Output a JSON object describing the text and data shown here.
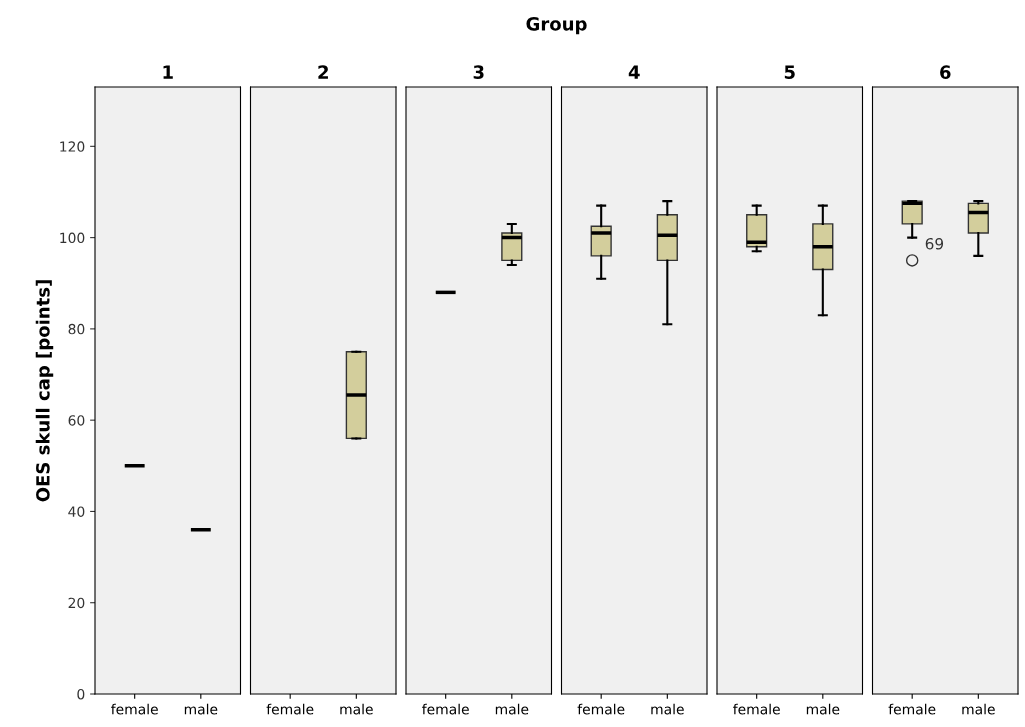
{
  "chart_data": [
    {
      "type": "box",
      "title": "1",
      "ylabel": "OES skull cap [points]",
      "annotations": [
        "Group"
      ],
      "categories": [
        "female",
        "male"
      ],
      "color": "#d3ce9c",
      "ylim": [
        0,
        133
      ],
      "yticks": [
        0,
        20,
        40,
        60,
        80,
        100,
        120
      ],
      "grid": false,
      "boxes": [
        {
          "low": 50,
          "q1": 50,
          "median": 50,
          "q3": 50,
          "high": 50
        },
        {
          "low": 36,
          "q1": 36,
          "median": 36,
          "q3": 36,
          "high": 36
        }
      ]
    },
    {
      "type": "box",
      "title": "2",
      "categories": [
        "female",
        "male"
      ],
      "color": "#d3ce9c",
      "ylim": [
        0,
        133
      ],
      "tick_labels": "x",
      "grid": false,
      "boxes": [
        null,
        {
          "low": 56,
          "q1": 56,
          "median": 65.5,
          "q3": 75,
          "high": 75
        }
      ]
    },
    {
      "type": "box",
      "title": "3",
      "categories": [
        "female",
        "male"
      ],
      "color": "#d3ce9c",
      "ylim": [
        0,
        133
      ],
      "tick_labels": "x",
      "grid": false,
      "boxes": [
        {
          "low": 88,
          "q1": 88,
          "median": 88,
          "q3": 88,
          "high": 88
        },
        {
          "low": 94,
          "q1": 95,
          "median": 100,
          "q3": 101,
          "high": 103
        }
      ]
    },
    {
      "type": "box",
      "title": "4",
      "categories": [
        "female",
        "male"
      ],
      "color": "#d3ce9c",
      "ylim": [
        0,
        133
      ],
      "tick_labels": "x",
      "grid": false,
      "boxes": [
        {
          "low": 91,
          "q1": 96,
          "median": 101,
          "q3": 102.5,
          "high": 107
        },
        {
          "low": 81,
          "q1": 95,
          "median": 100.5,
          "q3": 105,
          "high": 108
        }
      ]
    },
    {
      "type": "box",
      "title": "5",
      "categories": [
        "female",
        "male"
      ],
      "color": "#d3ce9c",
      "ylim": [
        0,
        133
      ],
      "tick_labels": "x",
      "grid": false,
      "boxes": [
        {
          "low": 97,
          "q1": 98,
          "median": 99,
          "q3": 105,
          "high": 107
        },
        {
          "low": 83,
          "q1": 93,
          "median": 98,
          "q3": 103,
          "high": 107
        }
      ]
    },
    {
      "type": "box",
      "title": "6",
      "categories": [
        "female",
        "male"
      ],
      "color": "#d3ce9c",
      "ylim": [
        0,
        133
      ],
      "tick_labels": "x",
      "grid": false,
      "annotations": [
        "69"
      ],
      "boxes": [
        {
          "low": 100,
          "q1": 103,
          "median": 107.5,
          "q3": 108,
          "high": 108,
          "outliers": [
            95
          ]
        },
        {
          "low": 96,
          "q1": 101,
          "median": 105.5,
          "q3": 107.5,
          "high": 108
        }
      ]
    }
  ]
}
